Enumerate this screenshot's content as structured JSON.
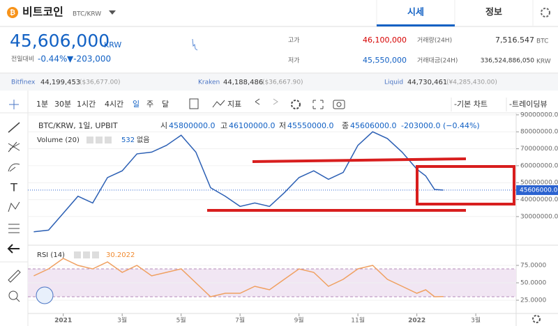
{
  "header": {
    "coin_name": "비트코인",
    "pair": "BTC/KRW",
    "tabs": [
      "시세",
      "정보"
    ]
  },
  "price": {
    "current": "45,606,000",
    "unit": "KRW",
    "change_label": "전일대비",
    "change_pct": "-0.44%",
    "change_amt": "▼-203,000"
  },
  "stats": [
    {
      "label": "고가",
      "value": "46,100,000"
    },
    {
      "label": "저가",
      "value": "45,550,000"
    },
    {
      "label": "거래량(24H)",
      "value": "7,516.547",
      "unit": "BTC"
    },
    {
      "label": "거래대금(24H)",
      "value": "336,524,886,050",
      "unit": "KRW"
    }
  ],
  "exchanges": [
    {
      "name": "Bitfinex",
      "krw": "44,199,453",
      "foreign": "($36,677.00)"
    },
    {
      "name": "Kraken",
      "krw": "44,188,486",
      "foreign": "($36,667.90)"
    },
    {
      "name": "Liquid",
      "krw": "44,730,461",
      "foreign": "(¥4,285,430.00)"
    }
  ],
  "toolbar": {
    "intervals": [
      "1분",
      "30분",
      "1시간",
      "4시간",
      "일",
      "주",
      "달"
    ],
    "indicator": "지표",
    "basic_chart": "-기본 차트",
    "tradingview": "-트레이딩뷰"
  },
  "legend": {
    "symbol": "BTC/KRW, 1일, UPBIT",
    "ohlc": [
      {
        "label": "시",
        "value": "45800000.0"
      },
      {
        "label": "고",
        "value": "46100000.0"
      },
      {
        "label": "저",
        "value": "45550000.0"
      },
      {
        "label": "종",
        "value": "45606000.0"
      }
    ],
    "change": "-203000.0 (−0.44%)",
    "volume": "Volume (20)",
    "volume_value": "532",
    "volume_none": "없음",
    "rsi": "RSI (14)",
    "rsi_value": "30.2022"
  },
  "chart_data": [
    {
      "type": "line",
      "x": [
        -1.0,
        -0.5,
        0,
        0.5,
        1.0,
        1.5,
        2.0,
        2.5,
        3.0,
        3.5,
        4.0,
        4.5,
        5.0,
        5.5,
        6.0,
        6.5,
        7.0,
        7.5,
        8.0,
        8.5,
        9.0,
        9.5,
        10.0,
        10.5,
        11.0,
        11.5,
        12.0,
        12.3,
        12.6,
        12.9
      ],
      "series": [
        {
          "name": "BTC/KRW",
          "color": "#2b5fb4",
          "values": [
            21000000,
            22000000,
            32000000,
            42000000,
            38000000,
            53000000,
            57000000,
            67000000,
            68000000,
            72000000,
            78000000,
            68000000,
            47000000,
            42000000,
            36000000,
            38000000,
            36000000,
            44000000,
            53000000,
            57000000,
            52000000,
            56000000,
            72000000,
            80000000,
            76000000,
            68000000,
            58000000,
            54000000,
            46000000,
            45606000
          ]
        }
      ],
      "xlim": [
        -1.2,
        15.37
      ],
      "xticks": [
        {
          "value": 0,
          "label": "2021"
        },
        {
          "value": 2,
          "label": "3월"
        },
        {
          "value": 4,
          "label": "5월"
        },
        {
          "value": 6,
          "label": "7월"
        },
        {
          "value": 8,
          "label": "9월"
        },
        {
          "value": 10,
          "label": "11월"
        },
        {
          "value": 12,
          "label": "2022"
        },
        {
          "value": 14,
          "label": "3월"
        }
      ],
      "ylim": [
        16000000,
        92000000
      ],
      "yticks": [
        {
          "value": 30000000,
          "label": "30000000.0"
        },
        {
          "value": 40000000,
          "label": "40000000.0"
        },
        {
          "value": 50000000,
          "label": "50000000.0"
        },
        {
          "value": 60000000,
          "label": "60000000.0"
        },
        {
          "value": 70000000,
          "label": "70000000.0"
        },
        {
          "value": 80000000,
          "label": "80000000.0"
        },
        {
          "value": 90000000,
          "label": "90000000.0"
        }
      ],
      "current": {
        "value": 45606000,
        "label": "45606000.0"
      }
    },
    {
      "type": "line",
      "x": [
        -1.0,
        -0.5,
        0,
        0.5,
        1.0,
        1.5,
        2.0,
        2.5,
        3.0,
        3.5,
        4.0,
        4.5,
        5.0,
        5.5,
        6.0,
        6.5,
        7.0,
        7.5,
        8.0,
        8.5,
        9.0,
        9.5,
        10.0,
        10.5,
        11.0,
        11.5,
        12.0,
        12.3,
        12.6,
        12.9
      ],
      "series": [
        {
          "name": "RSI (14)",
          "color": "#f0a060",
          "values": [
            60,
            70,
            85,
            75,
            70,
            80,
            65,
            75,
            60,
            65,
            70,
            50,
            30,
            35,
            35,
            45,
            40,
            55,
            70,
            65,
            45,
            55,
            70,
            75,
            55,
            45,
            35,
            40,
            30,
            30.2022
          ]
        }
      ],
      "xlim": [
        -1.2,
        15.37
      ],
      "ylim": [
        6,
        94
      ],
      "yticks": [
        {
          "value": 25,
          "label": "25.0000"
        },
        {
          "value": 50,
          "label": "50.0000"
        },
        {
          "value": 75,
          "label": "75.0000"
        }
      ],
      "band": [
        30,
        70
      ]
    }
  ]
}
